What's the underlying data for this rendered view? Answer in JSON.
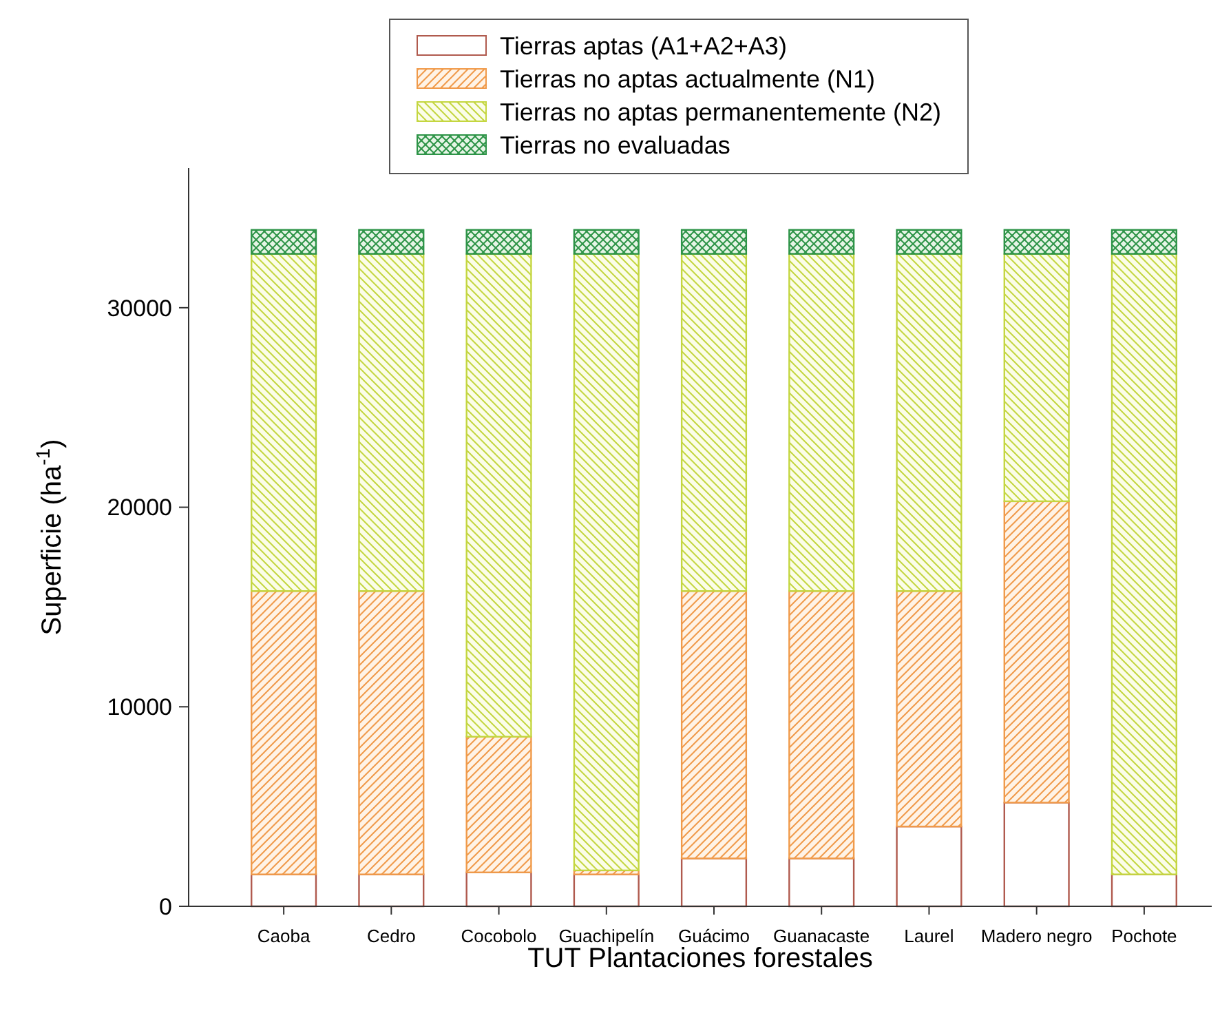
{
  "chart_data": {
    "type": "bar",
    "stacked": true,
    "xlabel": "TUT Plantaciones forestales",
    "ylabel": "Superficie (ha$^{-1}$)",
    "categories": [
      "Caoba",
      "Cedro",
      "Cocobolo",
      "Guachipelín",
      "Guácimo",
      "Guanacaste",
      "Laurel",
      "Madero negro",
      "Pochote"
    ],
    "series": [
      {
        "name": "Tierras aptas (A1+A2+A3)",
        "color": "#b05a4e",
        "values": [
          1600,
          1600,
          1700,
          1600,
          2400,
          2400,
          4000,
          5200,
          1600
        ]
      },
      {
        "name": "Tierras no aptas actualmente (N1)",
        "color": "#f09a4a",
        "values": [
          14200,
          14200,
          6800,
          200,
          13400,
          13400,
          11800,
          15100,
          0
        ]
      },
      {
        "name": "Tierras no aptas permanentemente (N2)",
        "color": "#c4d640",
        "values": [
          16900,
          16900,
          24200,
          30900,
          16900,
          16900,
          16900,
          12400,
          31100
        ]
      },
      {
        "name": "Tierras no evaluadas",
        "color": "#2e9448",
        "values": [
          1200,
          1200,
          1200,
          1200,
          1200,
          1200,
          1200,
          1200,
          1200
        ]
      }
    ],
    "ylim": [
      0,
      37000
    ],
    "yticks": [
      0,
      10000,
      20000,
      30000
    ],
    "legend": "top"
  }
}
